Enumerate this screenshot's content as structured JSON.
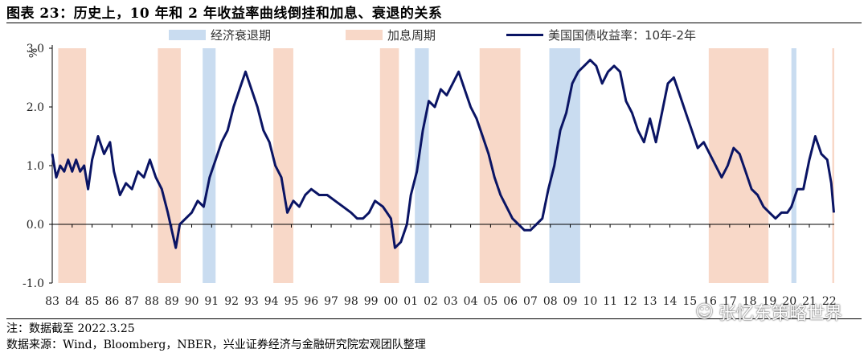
{
  "title": "图表 23：历史上，10 年和 2 年收益率曲线倒挂和加息、衰退的关系",
  "legend": {
    "recession": "经济衰退期",
    "hike": "加息周期",
    "spread": "美国国债收益率：10年-2年"
  },
  "colors": {
    "recession": "#c9dcf0",
    "hike": "#f8d8c8",
    "line": "#0a1464"
  },
  "note": "注：数据截至 2022.3.25",
  "source": "数据来源：Wind，Bloomberg，NBER，兴业证券经济与金融研究院宏观团队整理",
  "watermark": "张忆东策略世界",
  "watermark_icon": "wechat-icon",
  "chart_data": {
    "type": "line",
    "ylabel": "%",
    "ylim": [
      -1.0,
      3.0
    ],
    "yticks": [
      "-1.0",
      "0.0",
      "1.0",
      "2.0",
      "3.0"
    ],
    "x_range": [
      1983.0,
      2022.25
    ],
    "x_tick_labels": [
      "83",
      "84",
      "85",
      "86",
      "87",
      "88",
      "89",
      "90",
      "91",
      "92",
      "93",
      "94",
      "95",
      "96",
      "97",
      "98",
      "99",
      "00",
      "01",
      "02",
      "03",
      "04",
      "05",
      "06",
      "07",
      "08",
      "09",
      "10",
      "11",
      "12",
      "13",
      "14",
      "15",
      "16",
      "17",
      "18",
      "19",
      "20",
      "21",
      "22"
    ],
    "recession_periods": [
      [
        1990.55,
        1991.2
      ],
      [
        2001.2,
        2001.9
      ],
      [
        2007.95,
        2009.5
      ],
      [
        2020.1,
        2020.35
      ]
    ],
    "hike_periods": [
      [
        1983.3,
        1984.7
      ],
      [
        1988.3,
        1989.45
      ],
      [
        1994.1,
        1995.1
      ],
      [
        1999.45,
        2000.4
      ],
      [
        2004.45,
        2006.5
      ],
      [
        2015.95,
        2018.95
      ],
      [
        2022.15,
        2022.25
      ]
    ],
    "series": [
      {
        "name": "美国国债收益率：10年-2年",
        "x": [
          1983.0,
          1983.2,
          1983.4,
          1983.6,
          1983.8,
          1984.0,
          1984.2,
          1984.4,
          1984.6,
          1984.8,
          1985.0,
          1985.3,
          1985.6,
          1985.9,
          1986.1,
          1986.4,
          1986.7,
          1987.0,
          1987.3,
          1987.6,
          1987.9,
          1988.2,
          1988.5,
          1988.8,
          1989.0,
          1989.2,
          1989.4,
          1989.7,
          1990.0,
          1990.3,
          1990.6,
          1990.9,
          1991.2,
          1991.5,
          1991.8,
          1992.1,
          1992.4,
          1992.7,
          1993.0,
          1993.3,
          1993.6,
          1993.9,
          1994.2,
          1994.5,
          1994.8,
          1995.1,
          1995.4,
          1995.7,
          1996.0,
          1996.4,
          1996.8,
          1997.2,
          1997.6,
          1998.0,
          1998.3,
          1998.6,
          1998.9,
          1999.2,
          1999.6,
          2000.0,
          2000.2,
          2000.5,
          2000.8,
          2001.0,
          2001.3,
          2001.6,
          2001.9,
          2002.2,
          2002.5,
          2002.8,
          2003.1,
          2003.4,
          2003.7,
          2004.0,
          2004.3,
          2004.6,
          2004.9,
          2005.2,
          2005.5,
          2005.8,
          2006.1,
          2006.4,
          2006.7,
          2007.0,
          2007.3,
          2007.6,
          2007.9,
          2008.2,
          2008.5,
          2008.8,
          2009.1,
          2009.4,
          2009.7,
          2010.0,
          2010.3,
          2010.6,
          2010.9,
          2011.2,
          2011.5,
          2011.8,
          2012.1,
          2012.4,
          2012.7,
          2013.0,
          2013.3,
          2013.6,
          2013.9,
          2014.2,
          2014.5,
          2014.8,
          2015.1,
          2015.4,
          2015.7,
          2016.0,
          2016.3,
          2016.6,
          2016.9,
          2017.2,
          2017.5,
          2017.8,
          2018.1,
          2018.4,
          2018.7,
          2019.0,
          2019.3,
          2019.6,
          2019.9,
          2020.1,
          2020.4,
          2020.7,
          2021.0,
          2021.3,
          2021.6,
          2021.9,
          2022.1,
          2022.23
        ],
        "values": [
          1.2,
          0.8,
          1.0,
          0.9,
          1.1,
          0.9,
          1.1,
          0.9,
          1.0,
          0.6,
          1.1,
          1.5,
          1.2,
          1.4,
          0.9,
          0.5,
          0.7,
          0.6,
          0.9,
          0.8,
          1.1,
          0.8,
          0.6,
          0.2,
          -0.1,
          -0.4,
          0.0,
          0.1,
          0.2,
          0.4,
          0.3,
          0.8,
          1.1,
          1.4,
          1.6,
          2.0,
          2.3,
          2.6,
          2.3,
          2.0,
          1.6,
          1.4,
          1.0,
          0.8,
          0.2,
          0.4,
          0.3,
          0.5,
          0.6,
          0.5,
          0.5,
          0.4,
          0.3,
          0.2,
          0.1,
          0.1,
          0.2,
          0.4,
          0.3,
          0.1,
          -0.4,
          -0.3,
          0.0,
          0.5,
          0.9,
          1.6,
          2.1,
          2.0,
          2.3,
          2.2,
          2.4,
          2.6,
          2.3,
          2.0,
          1.8,
          1.5,
          1.2,
          0.8,
          0.5,
          0.3,
          0.1,
          0.0,
          -0.1,
          -0.1,
          0.0,
          0.1,
          0.6,
          1.0,
          1.6,
          1.9,
          2.4,
          2.6,
          2.7,
          2.8,
          2.7,
          2.4,
          2.6,
          2.7,
          2.6,
          2.1,
          1.9,
          1.6,
          1.4,
          1.8,
          1.4,
          1.9,
          2.4,
          2.5,
          2.2,
          1.9,
          1.6,
          1.3,
          1.4,
          1.2,
          1.0,
          0.8,
          1.0,
          1.3,
          1.2,
          0.9,
          0.6,
          0.5,
          0.3,
          0.2,
          0.1,
          0.2,
          0.2,
          0.3,
          0.6,
          0.6,
          1.1,
          1.5,
          1.2,
          1.1,
          0.7,
          0.2
        ]
      }
    ]
  }
}
